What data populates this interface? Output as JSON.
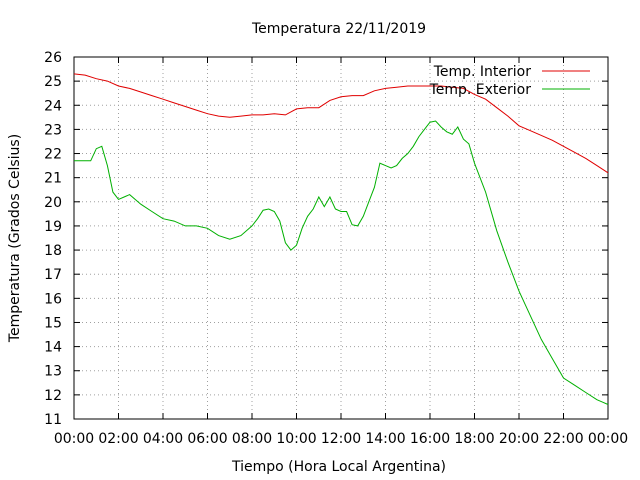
{
  "chart_data": {
    "type": "line",
    "title": "Temperatura 22/11/2019",
    "xlabel": "Tiempo (Hora Local Argentina)",
    "ylabel": "Temperatura (Grados Celsius)",
    "xlim": [
      0,
      24
    ],
    "ylim": [
      11,
      26
    ],
    "grid": true,
    "legend_position": "top-right",
    "x_tick_labels": [
      "00:00",
      "02:00",
      "04:00",
      "06:00",
      "08:00",
      "10:00",
      "12:00",
      "14:00",
      "16:00",
      "18:00",
      "20:00",
      "22:00",
      "00:00"
    ],
    "y_tick_labels": [
      "11",
      "12",
      "13",
      "14",
      "15",
      "16",
      "17",
      "18",
      "19",
      "20",
      "21",
      "22",
      "23",
      "24",
      "25",
      "26"
    ],
    "series": [
      {
        "name": "Temp. Interior",
        "color": "#e00000",
        "x": [
          0.0,
          0.5,
          1.0,
          1.5,
          2.0,
          2.5,
          3.0,
          3.5,
          4.0,
          4.5,
          5.0,
          5.5,
          6.0,
          6.5,
          7.0,
          7.5,
          8.0,
          8.5,
          9.0,
          9.5,
          10.0,
          10.5,
          11.0,
          11.5,
          12.0,
          12.5,
          13.0,
          13.5,
          14.0,
          14.5,
          15.0,
          15.5,
          16.0,
          16.5,
          17.0,
          17.5,
          18.0,
          18.5,
          19.0,
          19.5,
          20.0,
          20.5,
          21.0,
          21.5,
          22.0,
          22.5,
          23.0,
          23.5,
          24.0
        ],
        "y": [
          25.3,
          25.25,
          25.1,
          25.0,
          24.8,
          24.7,
          24.55,
          24.4,
          24.25,
          24.1,
          23.95,
          23.8,
          23.65,
          23.55,
          23.5,
          23.55,
          23.6,
          23.6,
          23.65,
          23.6,
          23.85,
          23.9,
          23.9,
          24.2,
          24.35,
          24.4,
          24.4,
          24.6,
          24.7,
          24.75,
          24.8,
          24.8,
          24.8,
          24.8,
          24.75,
          24.7,
          24.45,
          24.25,
          23.9,
          23.55,
          23.15,
          22.95,
          22.75,
          22.55,
          22.3,
          22.05,
          21.8,
          21.5,
          21.2
        ]
      },
      {
        "name": "Temp. Exterior",
        "color": "#00b000",
        "x": [
          0.0,
          0.5,
          0.75,
          1.0,
          1.25,
          1.5,
          1.75,
          2.0,
          2.25,
          2.5,
          3.0,
          3.5,
          4.0,
          4.5,
          5.0,
          5.5,
          6.0,
          6.5,
          7.0,
          7.5,
          8.0,
          8.25,
          8.5,
          8.75,
          9.0,
          9.25,
          9.5,
          9.75,
          10.0,
          10.25,
          10.5,
          10.75,
          11.0,
          11.25,
          11.5,
          11.75,
          12.0,
          12.25,
          12.5,
          12.75,
          13.0,
          13.25,
          13.5,
          13.75,
          14.0,
          14.25,
          14.5,
          14.75,
          15.0,
          15.25,
          15.5,
          15.75,
          16.0,
          16.25,
          16.5,
          16.75,
          17.0,
          17.25,
          17.5,
          17.75,
          18.0,
          18.5,
          19.0,
          19.5,
          20.0,
          20.5,
          21.0,
          21.5,
          22.0,
          22.5,
          23.0,
          23.5,
          23.75,
          24.0
        ],
        "y": [
          21.7,
          21.7,
          21.7,
          22.2,
          22.3,
          21.5,
          20.4,
          20.1,
          20.2,
          20.3,
          19.9,
          19.6,
          19.3,
          19.2,
          19.0,
          19.0,
          18.9,
          18.6,
          18.45,
          18.6,
          19.0,
          19.3,
          19.65,
          19.7,
          19.6,
          19.2,
          18.3,
          18.0,
          18.2,
          18.9,
          19.4,
          19.7,
          20.2,
          19.8,
          20.2,
          19.7,
          19.6,
          19.6,
          19.05,
          19.0,
          19.4,
          20.0,
          20.6,
          21.6,
          21.5,
          21.4,
          21.5,
          21.8,
          22.0,
          22.3,
          22.7,
          23.0,
          23.3,
          23.35,
          23.1,
          22.9,
          22.8,
          23.1,
          22.6,
          22.4,
          21.6,
          20.4,
          18.8,
          17.5,
          16.3,
          15.3,
          14.3,
          13.5,
          12.7,
          12.4,
          12.1,
          11.8,
          11.7,
          11.6
        ]
      }
    ]
  }
}
